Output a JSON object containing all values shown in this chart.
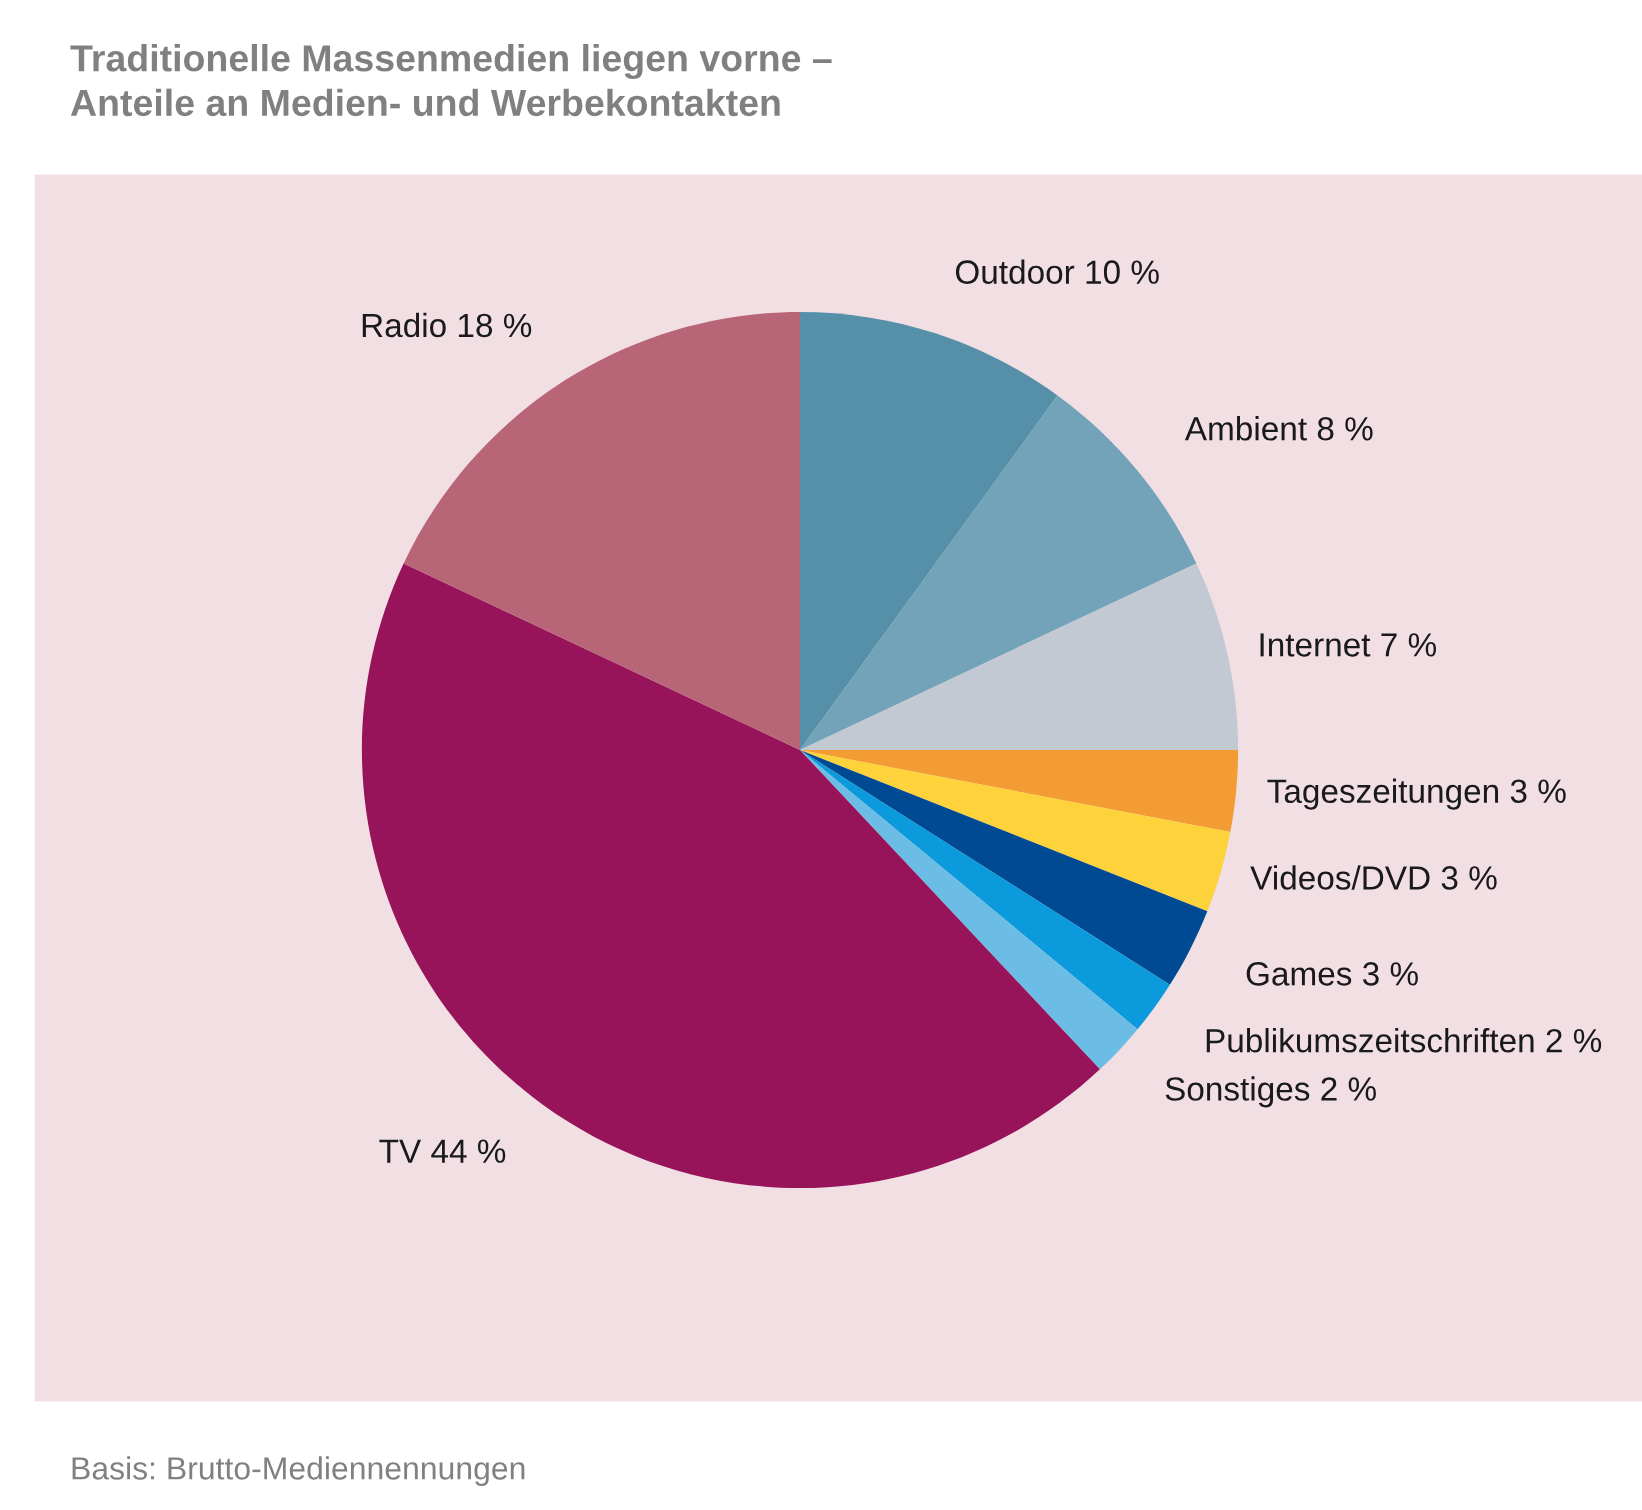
{
  "chart_data": {
    "type": "pie",
    "title": "Traditionelle Massenmedien liegen vorne –\nAnteile an Medien- und Werbekontakten",
    "categories": [
      "Outdoor",
      "Ambient",
      "Internet",
      "Tageszeitungen",
      "Videos/DVD",
      "Games",
      "Publikumszeitschriften",
      "Sonstiges",
      "TV",
      "Radio"
    ],
    "values": [
      10,
      8,
      7,
      3,
      3,
      3,
      2,
      2,
      44,
      18
    ],
    "value_labels": [
      "10 %",
      "8 %",
      "7 %",
      "3 %",
      "3 %",
      "3 %",
      "2 %",
      "2 %",
      "44 %",
      "18 %"
    ],
    "colors": [
      "#5590a8",
      "#72a3b8",
      "#c3c9d2",
      "#f39c34",
      "#fdd23a",
      "#004a94",
      "#0b9adb",
      "#6bbde6",
      "#98145a",
      "#b86578"
    ],
    "annotations": [
      "Basis: Brutto-Mediennennungen"
    ]
  }
}
